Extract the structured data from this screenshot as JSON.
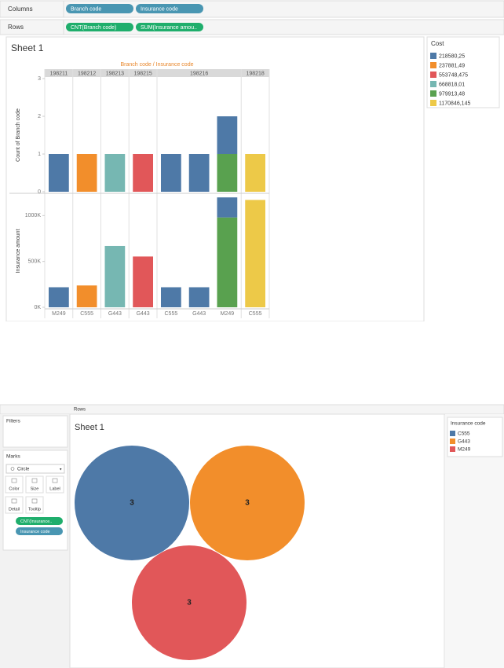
{
  "top": {
    "columns_label": "Columns",
    "column_pills": [
      "Branch code",
      "Insurance code"
    ],
    "rows_label": "Rows",
    "row_pills": [
      "CNT(Branch code)",
      "SUM(Insurance amou.."
    ],
    "sheet_title": "Sheet 1",
    "legend_title": "Cost"
  },
  "bottom": {
    "rows_label": "Rows",
    "filters_label": "Filters",
    "marks_label": "Marks",
    "mark_type": "Circle",
    "mark_buttons": [
      "Color",
      "Size",
      "Label",
      "Detail",
      "Tooltip"
    ],
    "mark_pills": [
      "CNT(Insurance..",
      "Insurance code"
    ],
    "sheet_title": "Sheet 1",
    "legend_title": "Insurance code"
  },
  "chart_data": [
    {
      "type": "bar",
      "stacked": true,
      "x_title": "Branch code / Insurance code",
      "x_groups": [
        "198211",
        "198212",
        "198213",
        "198215",
        "198216",
        null,
        null,
        "198218"
      ],
      "categories": [
        "M249",
        "C555",
        "G443",
        "G443",
        "C555",
        "G443",
        "M249",
        "C555"
      ],
      "count_axis": {
        "label": "Count of Branch code",
        "ylim": [
          0,
          3
        ],
        "yticks": [
          0,
          1,
          2,
          3
        ]
      },
      "amount_axis": {
        "label": "Insurance amount",
        "ylim": [
          0,
          1200000
        ],
        "yticks": [
          {
            "value": 0,
            "label": "0K"
          },
          {
            "value": 500000,
            "label": "500K"
          },
          {
            "value": 1000000,
            "label": "1000K"
          }
        ]
      },
      "series": [
        {
          "name": "218580,25",
          "color": "#4e79a7",
          "count": [
            1,
            null,
            null,
            null,
            1,
            1,
            1,
            null
          ],
          "amount": [
            218580.25,
            null,
            null,
            null,
            218580.25,
            218580.25,
            218580.25,
            null
          ]
        },
        {
          "name": "237881,49",
          "color": "#f28e2b",
          "count": [
            null,
            1,
            null,
            null,
            null,
            null,
            null,
            null
          ],
          "amount": [
            null,
            237881.49,
            null,
            null,
            null,
            null,
            null,
            null
          ]
        },
        {
          "name": "553748,475",
          "color": "#e15759",
          "count": [
            null,
            null,
            null,
            1,
            null,
            null,
            null,
            null
          ],
          "amount": [
            null,
            null,
            null,
            553748.475,
            null,
            null,
            null,
            null
          ]
        },
        {
          "name": "668818,01",
          "color": "#76b7b2",
          "count": [
            null,
            null,
            1,
            null,
            null,
            null,
            null,
            null
          ],
          "amount": [
            null,
            null,
            668818.01,
            null,
            null,
            null,
            null,
            null
          ]
        },
        {
          "name": "979913,48",
          "color": "#59a14f",
          "count": [
            null,
            null,
            null,
            null,
            null,
            null,
            1,
            null
          ],
          "amount": [
            null,
            null,
            null,
            null,
            null,
            null,
            979913.48,
            null
          ]
        },
        {
          "name": "1170846,145",
          "color": "#edc948",
          "count": [
            null,
            null,
            null,
            null,
            null,
            null,
            null,
            1
          ],
          "amount": [
            null,
            null,
            null,
            null,
            null,
            null,
            null,
            1170846.145
          ]
        }
      ]
    },
    {
      "type": "bubble",
      "categories": [
        "C555",
        "G443",
        "M249"
      ],
      "colors": [
        "#4e79a7",
        "#f28e2b",
        "#e15759"
      ],
      "values": [
        3,
        3,
        3
      ]
    }
  ]
}
